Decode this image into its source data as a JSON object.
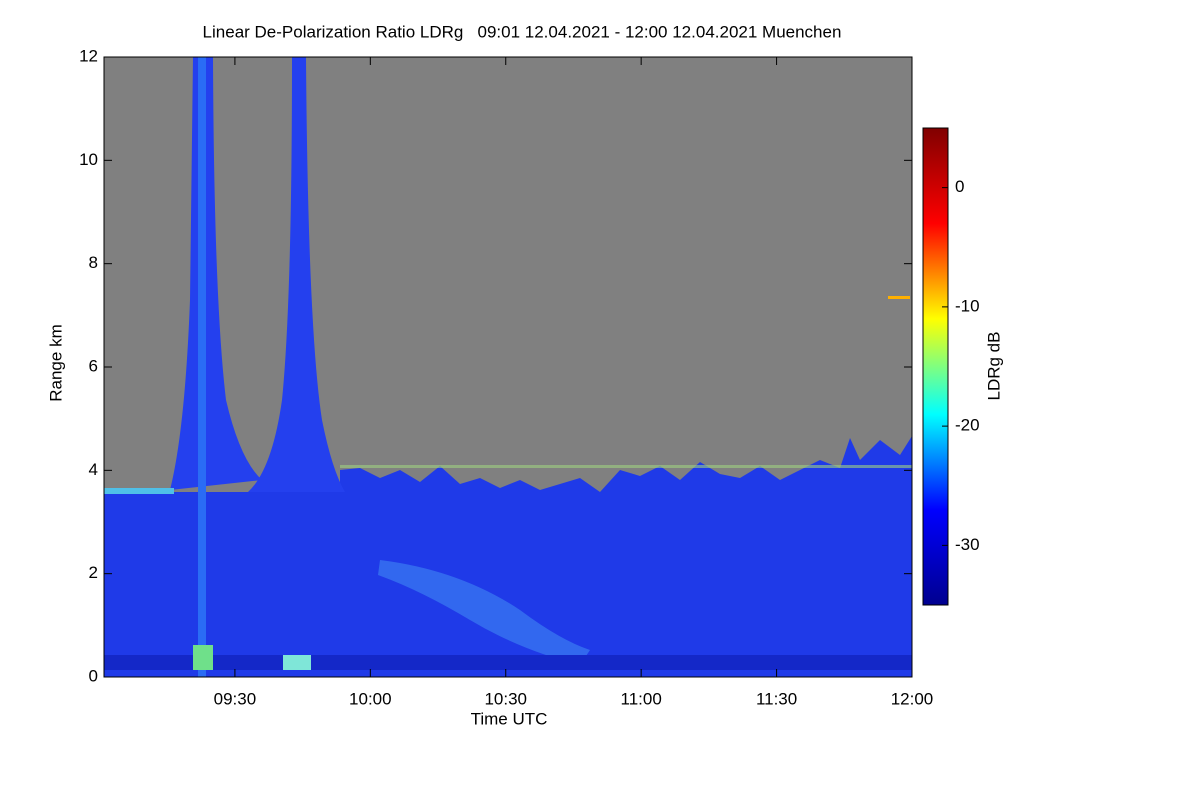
{
  "chart_data": {
    "type": "heatmap",
    "title": "Linear De-Polarization Ratio LDRg   09:01 12.04.2021 - 12:00 12.04.2021 Muenchen",
    "x_label": "Time UTC",
    "y_label": "Range km",
    "xlim": [
      541,
      720
    ],
    "xticks": [
      {
        "value": 570,
        "label": "09:30"
      },
      {
        "value": 600,
        "label": "10:00"
      },
      {
        "value": 630,
        "label": "10:30"
      },
      {
        "value": 660,
        "label": "11:00"
      },
      {
        "value": 690,
        "label": "11:30"
      },
      {
        "value": 720,
        "label": "12:00"
      }
    ],
    "ylim": [
      0,
      12
    ],
    "yticks": [
      0,
      2,
      4,
      6,
      8,
      10,
      12
    ],
    "colorbar": {
      "label": "LDRg dB",
      "lim": [
        -35,
        5
      ],
      "ticks": [
        0,
        -10,
        -20,
        -30
      ],
      "colormap": [
        "#00008f",
        "#0000ff",
        "#00ffff",
        "#ffff00",
        "#ff0000",
        "#800000"
      ]
    }
  }
}
